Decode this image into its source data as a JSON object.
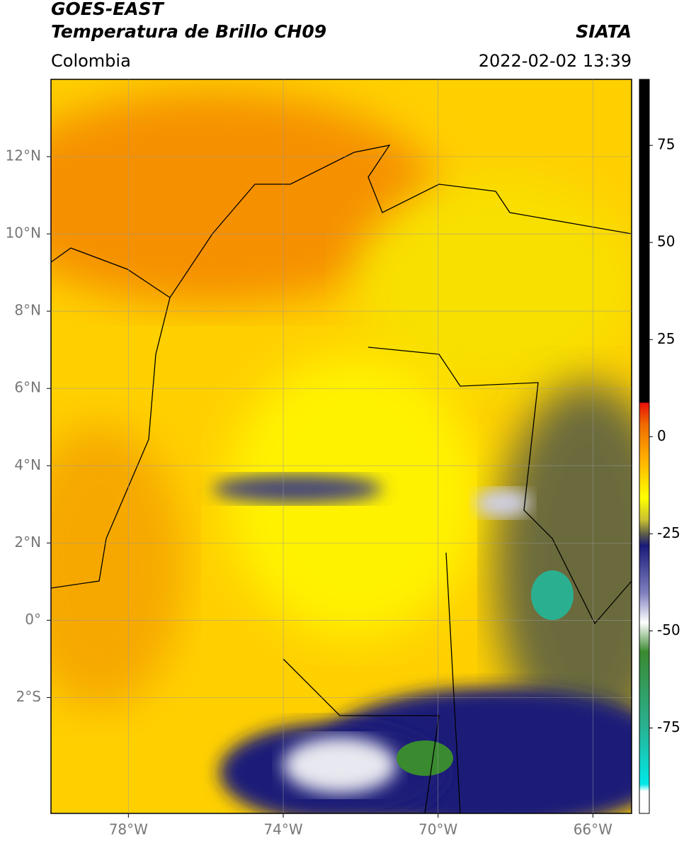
{
  "header": {
    "title_line1": "GOES-EAST",
    "title_line2": "Temperatura de Brillo CH09",
    "brand": "SIATA",
    "region": "Colombia",
    "timestamp": "2022-02-02 13:39"
  },
  "map": {
    "xlim": [
      -80,
      -65
    ],
    "ylim": [
      -5,
      14
    ],
    "xticks": [
      {
        "value": -78,
        "label": "78°W"
      },
      {
        "value": -74,
        "label": "74°W"
      },
      {
        "value": -70,
        "label": "70°W"
      },
      {
        "value": -66,
        "label": "66°W"
      }
    ],
    "yticks": [
      {
        "value": 12,
        "label": "12°N"
      },
      {
        "value": 10,
        "label": "10°N"
      },
      {
        "value": 8,
        "label": "8°N"
      },
      {
        "value": 6,
        "label": "6°N"
      },
      {
        "value": 4,
        "label": "4°N"
      },
      {
        "value": 2,
        "label": "2°N"
      },
      {
        "value": 0,
        "label": "0°"
      },
      {
        "value": -2,
        "label": "2°S"
      }
    ],
    "grid": true
  },
  "colorbar": {
    "lim": [
      -97,
      92
    ],
    "ticks": [
      75,
      50,
      25,
      0,
      -25,
      -50,
      -75
    ]
  }
}
